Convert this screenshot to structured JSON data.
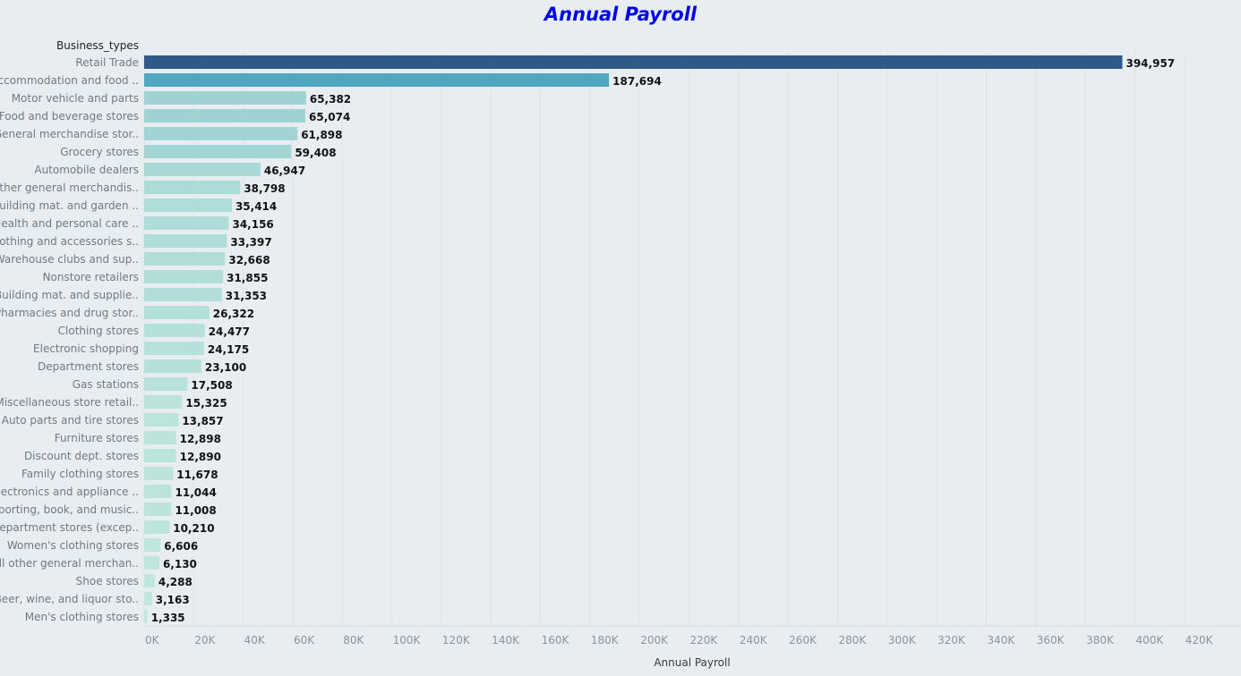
{
  "chart_data": {
    "type": "bar",
    "orientation": "horizontal",
    "title": "Annual Payroll",
    "category_header": "Business_types",
    "xlabel": "Annual Payroll",
    "xlim": [
      0,
      420000
    ],
    "x_ticks": [
      0,
      20000,
      40000,
      60000,
      80000,
      100000,
      120000,
      140000,
      160000,
      180000,
      200000,
      220000,
      240000,
      260000,
      280000,
      300000,
      320000,
      340000,
      360000,
      380000,
      400000,
      420000
    ],
    "x_tick_labels": [
      "0K",
      "20K",
      "40K",
      "60K",
      "80K",
      "100K",
      "120K",
      "140K",
      "160K",
      "180K",
      "200K",
      "220K",
      "240K",
      "260K",
      "280K",
      "300K",
      "320K",
      "340K",
      "360K",
      "380K",
      "400K",
      "420K"
    ],
    "grid": true,
    "categories": [
      "Retail Trade",
      "Accommodation and food ..",
      "Motor vehicle and parts",
      "Food and beverage stores",
      "General merchandise stor..",
      "Grocery stores",
      "Automobile dealers",
      "Other general merchandis..",
      "Building mat. and garden ..",
      "Health and personal care ..",
      "Clothing and accessories s..",
      "Warehouse clubs and sup..",
      "Nonstore retailers",
      "Building mat. and supplie..",
      "Pharmacies and drug stor..",
      "Clothing stores",
      "Electronic shopping",
      "Department stores",
      "Gas stations",
      "Miscellaneous store retail..",
      "Auto parts and tire stores",
      "Furniture stores",
      "Discount dept. stores",
      "Family clothing stores",
      "Electronics and appliance ..",
      "Sporting, book, and music..",
      "Department stores (excep..",
      "Women's clothing stores",
      "All other general merchan..",
      "Shoe stores",
      "Beer, wine, and liquor sto..",
      "Men's clothing stores"
    ],
    "values": [
      394957,
      187694,
      65382,
      65074,
      61898,
      59408,
      46947,
      38798,
      35414,
      34156,
      33397,
      32668,
      31855,
      31353,
      26322,
      24477,
      24175,
      23100,
      17508,
      15325,
      13857,
      12898,
      12890,
      11678,
      11044,
      11008,
      10210,
      6606,
      6130,
      4288,
      3163,
      1335
    ],
    "value_labels": [
      "394,957",
      "187,694",
      "65,382",
      "65,074",
      "61,898",
      "59,408",
      "46,947",
      "38,798",
      "35,414",
      "34,156",
      "33,397",
      "32,668",
      "31,855",
      "31,353",
      "26,322",
      "24,477",
      "24,175",
      "23,100",
      "17,508",
      "15,325",
      "13,857",
      "12,898",
      "12,890",
      "11,678",
      "11,044",
      "11,008",
      "10,210",
      "6,606",
      "6,130",
      "4,288",
      "3,163",
      "1,335"
    ],
    "color_scale": {
      "low": "#c2e8df",
      "mid": "#9fd3d3",
      "high": "#50a7c2",
      "max": "#2f5a88"
    }
  }
}
